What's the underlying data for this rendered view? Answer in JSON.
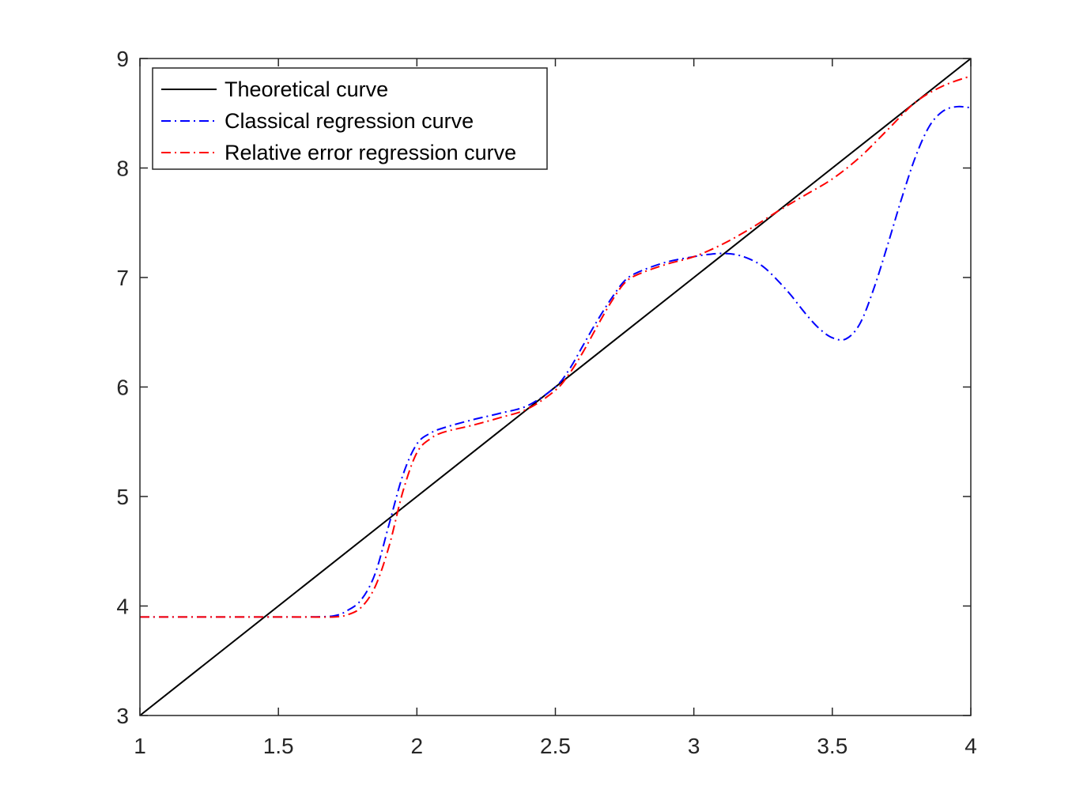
{
  "chart_data": {
    "type": "line",
    "title": "",
    "xlabel": "",
    "ylabel": "",
    "xlim": [
      1,
      4
    ],
    "ylim": [
      3,
      9
    ],
    "xticks": [
      1,
      1.5,
      2,
      2.5,
      3,
      3.5,
      4
    ],
    "xtick_labels": [
      "1",
      "1.5",
      "2",
      "2.5",
      "3",
      "3.5",
      "4"
    ],
    "yticks": [
      3,
      4,
      5,
      6,
      7,
      8,
      9
    ],
    "ytick_labels": [
      "3",
      "4",
      "5",
      "6",
      "7",
      "8",
      "9"
    ],
    "grid": false,
    "legend_position": "top-left",
    "series": [
      {
        "name": "Theoretical curve",
        "color": "#000000",
        "dash": "solid",
        "x": [
          1,
          4
        ],
        "y": [
          3,
          9
        ]
      },
      {
        "name": "Classical regression curve",
        "color": "#0000ff",
        "dash": "dash-dot",
        "x": [
          1,
          1.5,
          1.6,
          1.7,
          1.75,
          1.8,
          1.85,
          1.9,
          1.95,
          2.0,
          2.05,
          2.1,
          2.2,
          2.3,
          2.4,
          2.5,
          2.55,
          2.6,
          2.65,
          2.7,
          2.75,
          2.8,
          2.9,
          3.0,
          3.05,
          3.1,
          3.15,
          3.2,
          3.25,
          3.3,
          3.35,
          3.4,
          3.45,
          3.5,
          3.55,
          3.6,
          3.65,
          3.7,
          3.75,
          3.8,
          3.85,
          3.9,
          3.95,
          4.0
        ],
        "y": [
          3.9,
          3.9,
          3.9,
          3.91,
          3.96,
          4.06,
          4.3,
          4.75,
          5.2,
          5.48,
          5.58,
          5.63,
          5.7,
          5.76,
          5.83,
          6.0,
          6.16,
          6.38,
          6.6,
          6.8,
          6.97,
          7.05,
          7.14,
          7.19,
          7.21,
          7.22,
          7.21,
          7.17,
          7.1,
          6.98,
          6.84,
          6.68,
          6.54,
          6.45,
          6.44,
          6.58,
          6.9,
          7.3,
          7.72,
          8.1,
          8.38,
          8.52,
          8.56,
          8.55
        ]
      },
      {
        "name": "Relative error regression curve",
        "color": "#ff0000",
        "dash": "dash-dot",
        "x": [
          1,
          1.5,
          1.6,
          1.7,
          1.75,
          1.8,
          1.85,
          1.9,
          1.95,
          2.0,
          2.05,
          2.1,
          2.2,
          2.3,
          2.4,
          2.5,
          2.55,
          2.6,
          2.65,
          2.7,
          2.75,
          2.8,
          2.9,
          3.0,
          3.1,
          3.2,
          3.3,
          3.4,
          3.5,
          3.6,
          3.7,
          3.8,
          3.9,
          4.0
        ],
        "y": [
          3.9,
          3.9,
          3.9,
          3.9,
          3.92,
          3.99,
          4.18,
          4.55,
          5.05,
          5.4,
          5.53,
          5.59,
          5.65,
          5.72,
          5.8,
          5.97,
          6.12,
          6.32,
          6.55,
          6.77,
          6.95,
          7.03,
          7.12,
          7.19,
          7.3,
          7.44,
          7.6,
          7.75,
          7.9,
          8.1,
          8.35,
          8.6,
          8.75,
          8.84
        ]
      }
    ]
  }
}
